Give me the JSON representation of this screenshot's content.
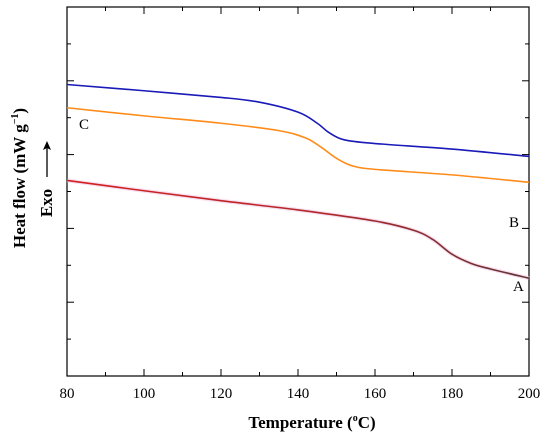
{
  "chart_data": {
    "type": "line",
    "title": "",
    "xlabel": {
      "prefix": "Temperature (",
      "sup": "o",
      "suffix": "C)"
    },
    "ylabel": {
      "prefix": "Heat flow (mW g",
      "sup": "−1",
      "suffix": ")"
    },
    "exo_label": "Exo",
    "xlim": [
      80,
      200
    ],
    "x_ticks": [
      80,
      100,
      120,
      140,
      160,
      180,
      200
    ],
    "ylim": [
      0,
      10
    ],
    "y_major_ticks": [
      0,
      2,
      4,
      6,
      8,
      10
    ],
    "y_minor_ticks": [
      1,
      3,
      5,
      7,
      9
    ],
    "y_tick_labels_shown": false,
    "grid": false,
    "legend": "none",
    "series": [
      {
        "label": "C",
        "color": "#1a1ab8",
        "points": [
          [
            80,
            7.9
          ],
          [
            100,
            7.73
          ],
          [
            120,
            7.55
          ],
          [
            130,
            7.42
          ],
          [
            140,
            7.15
          ],
          [
            145,
            6.85
          ],
          [
            148,
            6.6
          ],
          [
            152,
            6.4
          ],
          [
            160,
            6.3
          ],
          [
            180,
            6.15
          ],
          [
            200,
            5.95
          ]
        ]
      },
      {
        "label": "B",
        "color": "#ff8c1a",
        "points": [
          [
            80,
            7.27
          ],
          [
            100,
            7.05
          ],
          [
            120,
            6.85
          ],
          [
            135,
            6.65
          ],
          [
            142,
            6.45
          ],
          [
            146,
            6.2
          ],
          [
            150,
            5.9
          ],
          [
            154,
            5.7
          ],
          [
            160,
            5.6
          ],
          [
            180,
            5.45
          ],
          [
            200,
            5.25
          ]
        ]
      },
      {
        "label": "A",
        "color": "#cc2222",
        "color_end": "#6b3a3a",
        "points": [
          [
            80,
            5.3
          ],
          [
            100,
            5.02
          ],
          [
            120,
            4.75
          ],
          [
            140,
            4.5
          ],
          [
            160,
            4.2
          ],
          [
            170,
            3.95
          ],
          [
            175,
            3.7
          ],
          [
            180,
            3.3
          ],
          [
            185,
            3.05
          ],
          [
            190,
            2.9
          ],
          [
            200,
            2.65
          ]
        ]
      }
    ]
  }
}
